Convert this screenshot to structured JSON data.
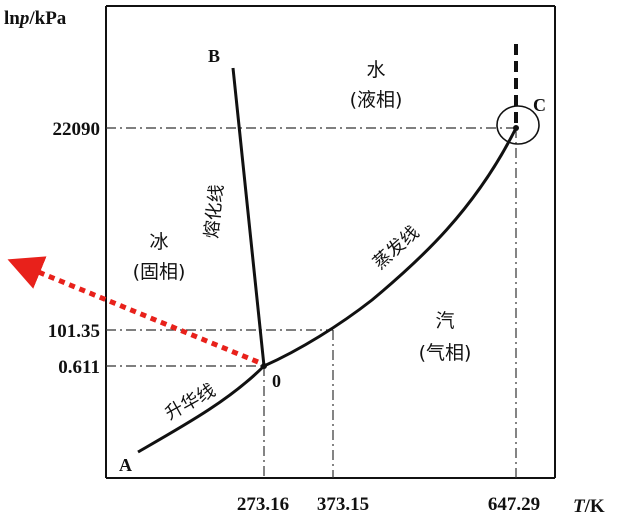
{
  "y_axis": {
    "title": "lnp/kPa",
    "title_var": "p",
    "title_pre": "ln",
    "title_post": "/kPa"
  },
  "x_axis": {
    "title_var": "T",
    "title_post": "/K"
  },
  "y_ticks": [
    "22090",
    "101.35",
    "0.611"
  ],
  "x_ticks": [
    "273.16",
    "373.15",
    "647.29"
  ],
  "points": {
    "A": "A",
    "B": "B",
    "C": "C",
    "O": "0"
  },
  "regions": {
    "water": {
      "line1": "水",
      "line2": "(液相)"
    },
    "ice": {
      "line1": "冰",
      "line2": "(固相)"
    },
    "vapor": {
      "line1": "汽",
      "line2": "(气相)"
    }
  },
  "curves": {
    "melting": "熔化线",
    "evaporation": "蒸发线",
    "sublimation": "升华线"
  },
  "colors": {
    "arrow": "#e8211b",
    "line": "#111111"
  }
}
